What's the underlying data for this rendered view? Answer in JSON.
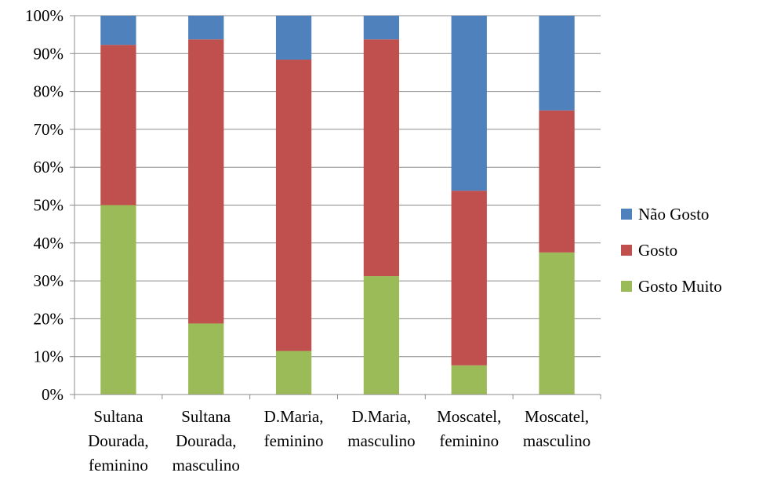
{
  "chart_data": {
    "type": "bar",
    "stacked": true,
    "stacked_percent": true,
    "categories": [
      [
        "Sultana",
        "Dourada,",
        "feminino"
      ],
      [
        "Sultana",
        "Dourada,",
        "masculino"
      ],
      [
        "D.Maria,",
        "feminino"
      ],
      [
        "D.Maria,",
        "masculino"
      ],
      [
        "Moscatel,",
        "feminino"
      ],
      [
        "Moscatel,",
        "masculino"
      ]
    ],
    "series": [
      {
        "name": "Gosto Muito",
        "color": "#9BBB59",
        "values": [
          50,
          18.75,
          11.5,
          31.25,
          7.7,
          37.5
        ]
      },
      {
        "name": "Gosto",
        "color": "#C0504D",
        "values": [
          42.3,
          75,
          76.9,
          62.5,
          46.1,
          37.5
        ]
      },
      {
        "name": "Não Gosto",
        "color": "#4F81BD",
        "values": [
          7.7,
          6.25,
          11.6,
          6.25,
          46.2,
          25
        ]
      }
    ],
    "y_ticks": [
      "0%",
      "10%",
      "20%",
      "30%",
      "40%",
      "50%",
      "60%",
      "70%",
      "80%",
      "90%",
      "100%"
    ],
    "ylim": [
      0,
      100
    ],
    "grid": true,
    "legend_position": "right",
    "legend_order": [
      "Não Gosto",
      "Gosto",
      "Gosto Muito"
    ]
  }
}
